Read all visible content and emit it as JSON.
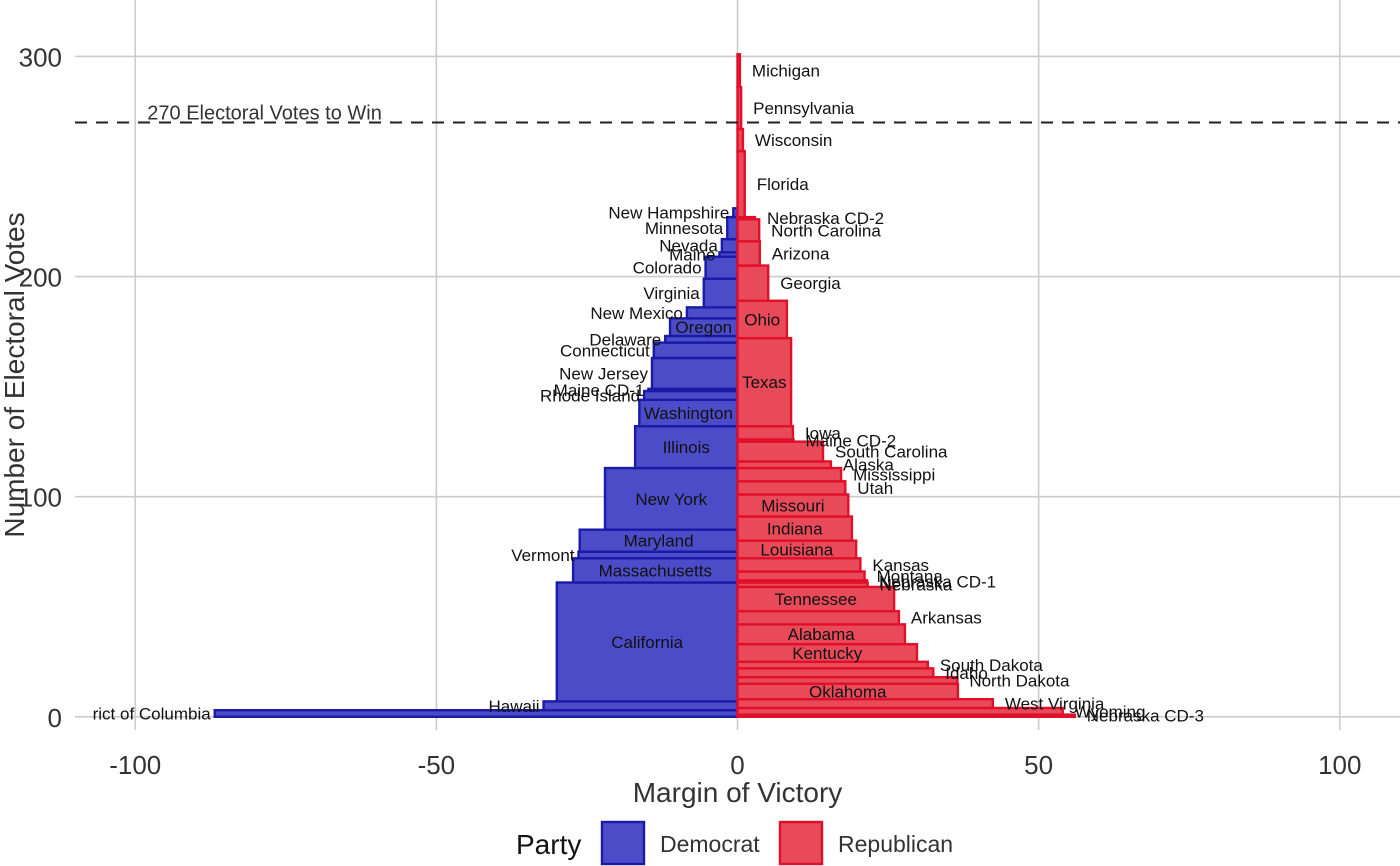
{
  "chart_data": {
    "type": "bar",
    "orientation": "horizontal-stacked",
    "xlabel": "Margin of Victory",
    "ylabel": "Number of Electoral Votes",
    "xlim": [
      -110,
      110
    ],
    "ylim": [
      -6,
      312
    ],
    "x_ticks": [
      -100,
      -50,
      0,
      50,
      100
    ],
    "y_ticks": [
      0,
      100,
      200,
      300
    ],
    "grid": true,
    "threshold": {
      "value": 270,
      "label": "270 Electoral Votes to Win"
    },
    "legend": {
      "title": "Party",
      "position": "bottom",
      "entries": [
        {
          "name": "Democrat",
          "color": "#4c4cc8",
          "stroke": "#1a1aa8"
        },
        {
          "name": "Republican",
          "color": "#e84a5a",
          "stroke": "#e0102a"
        }
      ]
    },
    "series": [
      {
        "name": "Democrat",
        "bars": [
          {
            "state": "District of Columbia",
            "votes": 3,
            "margin": -86.8,
            "label": "rict of Columbia"
          },
          {
            "state": "Hawaii",
            "votes": 4,
            "margin": -32.2,
            "label": "Hawaii"
          },
          {
            "state": "California",
            "votes": 54,
            "margin": -30
          },
          {
            "state": "Massachusetts",
            "votes": 11,
            "margin": -27.3
          },
          {
            "state": "Vermont",
            "votes": 3,
            "margin": -26.4
          },
          {
            "state": "Maryland",
            "votes": 10,
            "margin": -26.2
          },
          {
            "state": "New York",
            "votes": 28,
            "margin": -22
          },
          {
            "state": "Illinois",
            "votes": 19,
            "margin": -17
          },
          {
            "state": "Washington",
            "votes": 12,
            "margin": -16.3
          },
          {
            "state": "Rhode Island",
            "votes": 4,
            "margin": -15.5
          },
          {
            "state": "Maine CD-1",
            "votes": 1,
            "margin": -14.8
          },
          {
            "state": "New Jersey",
            "votes": 14,
            "margin": -14.2
          },
          {
            "state": "Connecticut",
            "votes": 7,
            "margin": -13.9
          },
          {
            "state": "Delaware",
            "votes": 3,
            "margin": -12
          },
          {
            "state": "Oregon",
            "votes": 8,
            "margin": -11.2
          },
          {
            "state": "New Mexico",
            "votes": 5,
            "margin": -8.4
          },
          {
            "state": "Virginia",
            "votes": 13,
            "margin": -5.6
          },
          {
            "state": "Colorado",
            "votes": 10,
            "margin": -5.3
          },
          {
            "state": "Maine",
            "votes": 2,
            "margin": -3
          },
          {
            "state": "Nevada",
            "votes": 6,
            "margin": -2.6
          },
          {
            "state": "Minnesota",
            "votes": 10,
            "margin": -1.7
          },
          {
            "state": "New Hampshire",
            "votes": 4,
            "margin": -0.7
          }
        ]
      },
      {
        "name": "Republican",
        "bars": [
          {
            "state": "Nebraska CD-3",
            "votes": 1,
            "margin": 56
          },
          {
            "state": "Wyoming",
            "votes": 3,
            "margin": 54
          },
          {
            "state": "West Virginia",
            "votes": 4,
            "margin": 42.4
          },
          {
            "state": "Oklahoma",
            "votes": 7,
            "margin": 36.6
          },
          {
            "state": "North Dakota",
            "votes": 3,
            "margin": 36.5
          },
          {
            "state": "Idaho",
            "votes": 4,
            "margin": 32.5
          },
          {
            "state": "South Dakota",
            "votes": 3,
            "margin": 31.6
          },
          {
            "state": "Kentucky",
            "votes": 8,
            "margin": 29.8
          },
          {
            "state": "Alabama",
            "votes": 9,
            "margin": 27.8
          },
          {
            "state": "Arkansas",
            "votes": 6,
            "margin": 26.8
          },
          {
            "state": "Tennessee",
            "votes": 11,
            "margin": 26
          },
          {
            "state": "Nebraska",
            "votes": 2,
            "margin": 21.6
          },
          {
            "state": "Nebraska CD-1",
            "votes": 1,
            "margin": 21.5
          },
          {
            "state": "Montana",
            "votes": 4,
            "margin": 21.1
          },
          {
            "state": "Kansas",
            "votes": 6,
            "margin": 20.4
          },
          {
            "state": "Louisiana",
            "votes": 8,
            "margin": 19.7
          },
          {
            "state": "Indiana",
            "votes": 11,
            "margin": 19
          },
          {
            "state": "Missouri",
            "votes": 10,
            "margin": 18.4
          },
          {
            "state": "Utah",
            "votes": 6,
            "margin": 17.9
          },
          {
            "state": "Mississippi",
            "votes": 6,
            "margin": 17.2
          },
          {
            "state": "Alaska",
            "votes": 3,
            "margin": 15.5
          },
          {
            "state": "South Carolina",
            "votes": 9,
            "margin": 14.2
          },
          {
            "state": "Maine CD-2",
            "votes": 1,
            "margin": 9.3
          },
          {
            "state": "Iowa",
            "votes": 6,
            "margin": 9.2
          },
          {
            "state": "Texas",
            "votes": 40,
            "margin": 8.9
          },
          {
            "state": "Ohio",
            "votes": 17,
            "margin": 8.2
          },
          {
            "state": "Georgia",
            "votes": 16,
            "margin": 5.1
          },
          {
            "state": "Arizona",
            "votes": 11,
            "margin": 3.7
          },
          {
            "state": "North Carolina",
            "votes": 10,
            "margin": 3.6
          },
          {
            "state": "Nebraska CD-2",
            "votes": 1,
            "margin": 2.9
          },
          {
            "state": "Florida",
            "votes": 30,
            "margin": 1.2
          },
          {
            "state": "Wisconsin",
            "votes": 10,
            "margin": 0.9
          },
          {
            "state": "Pennsylvania",
            "votes": 19,
            "margin": 0.6
          },
          {
            "state": "Michigan",
            "votes": 15,
            "margin": 0.4
          }
        ]
      }
    ]
  }
}
